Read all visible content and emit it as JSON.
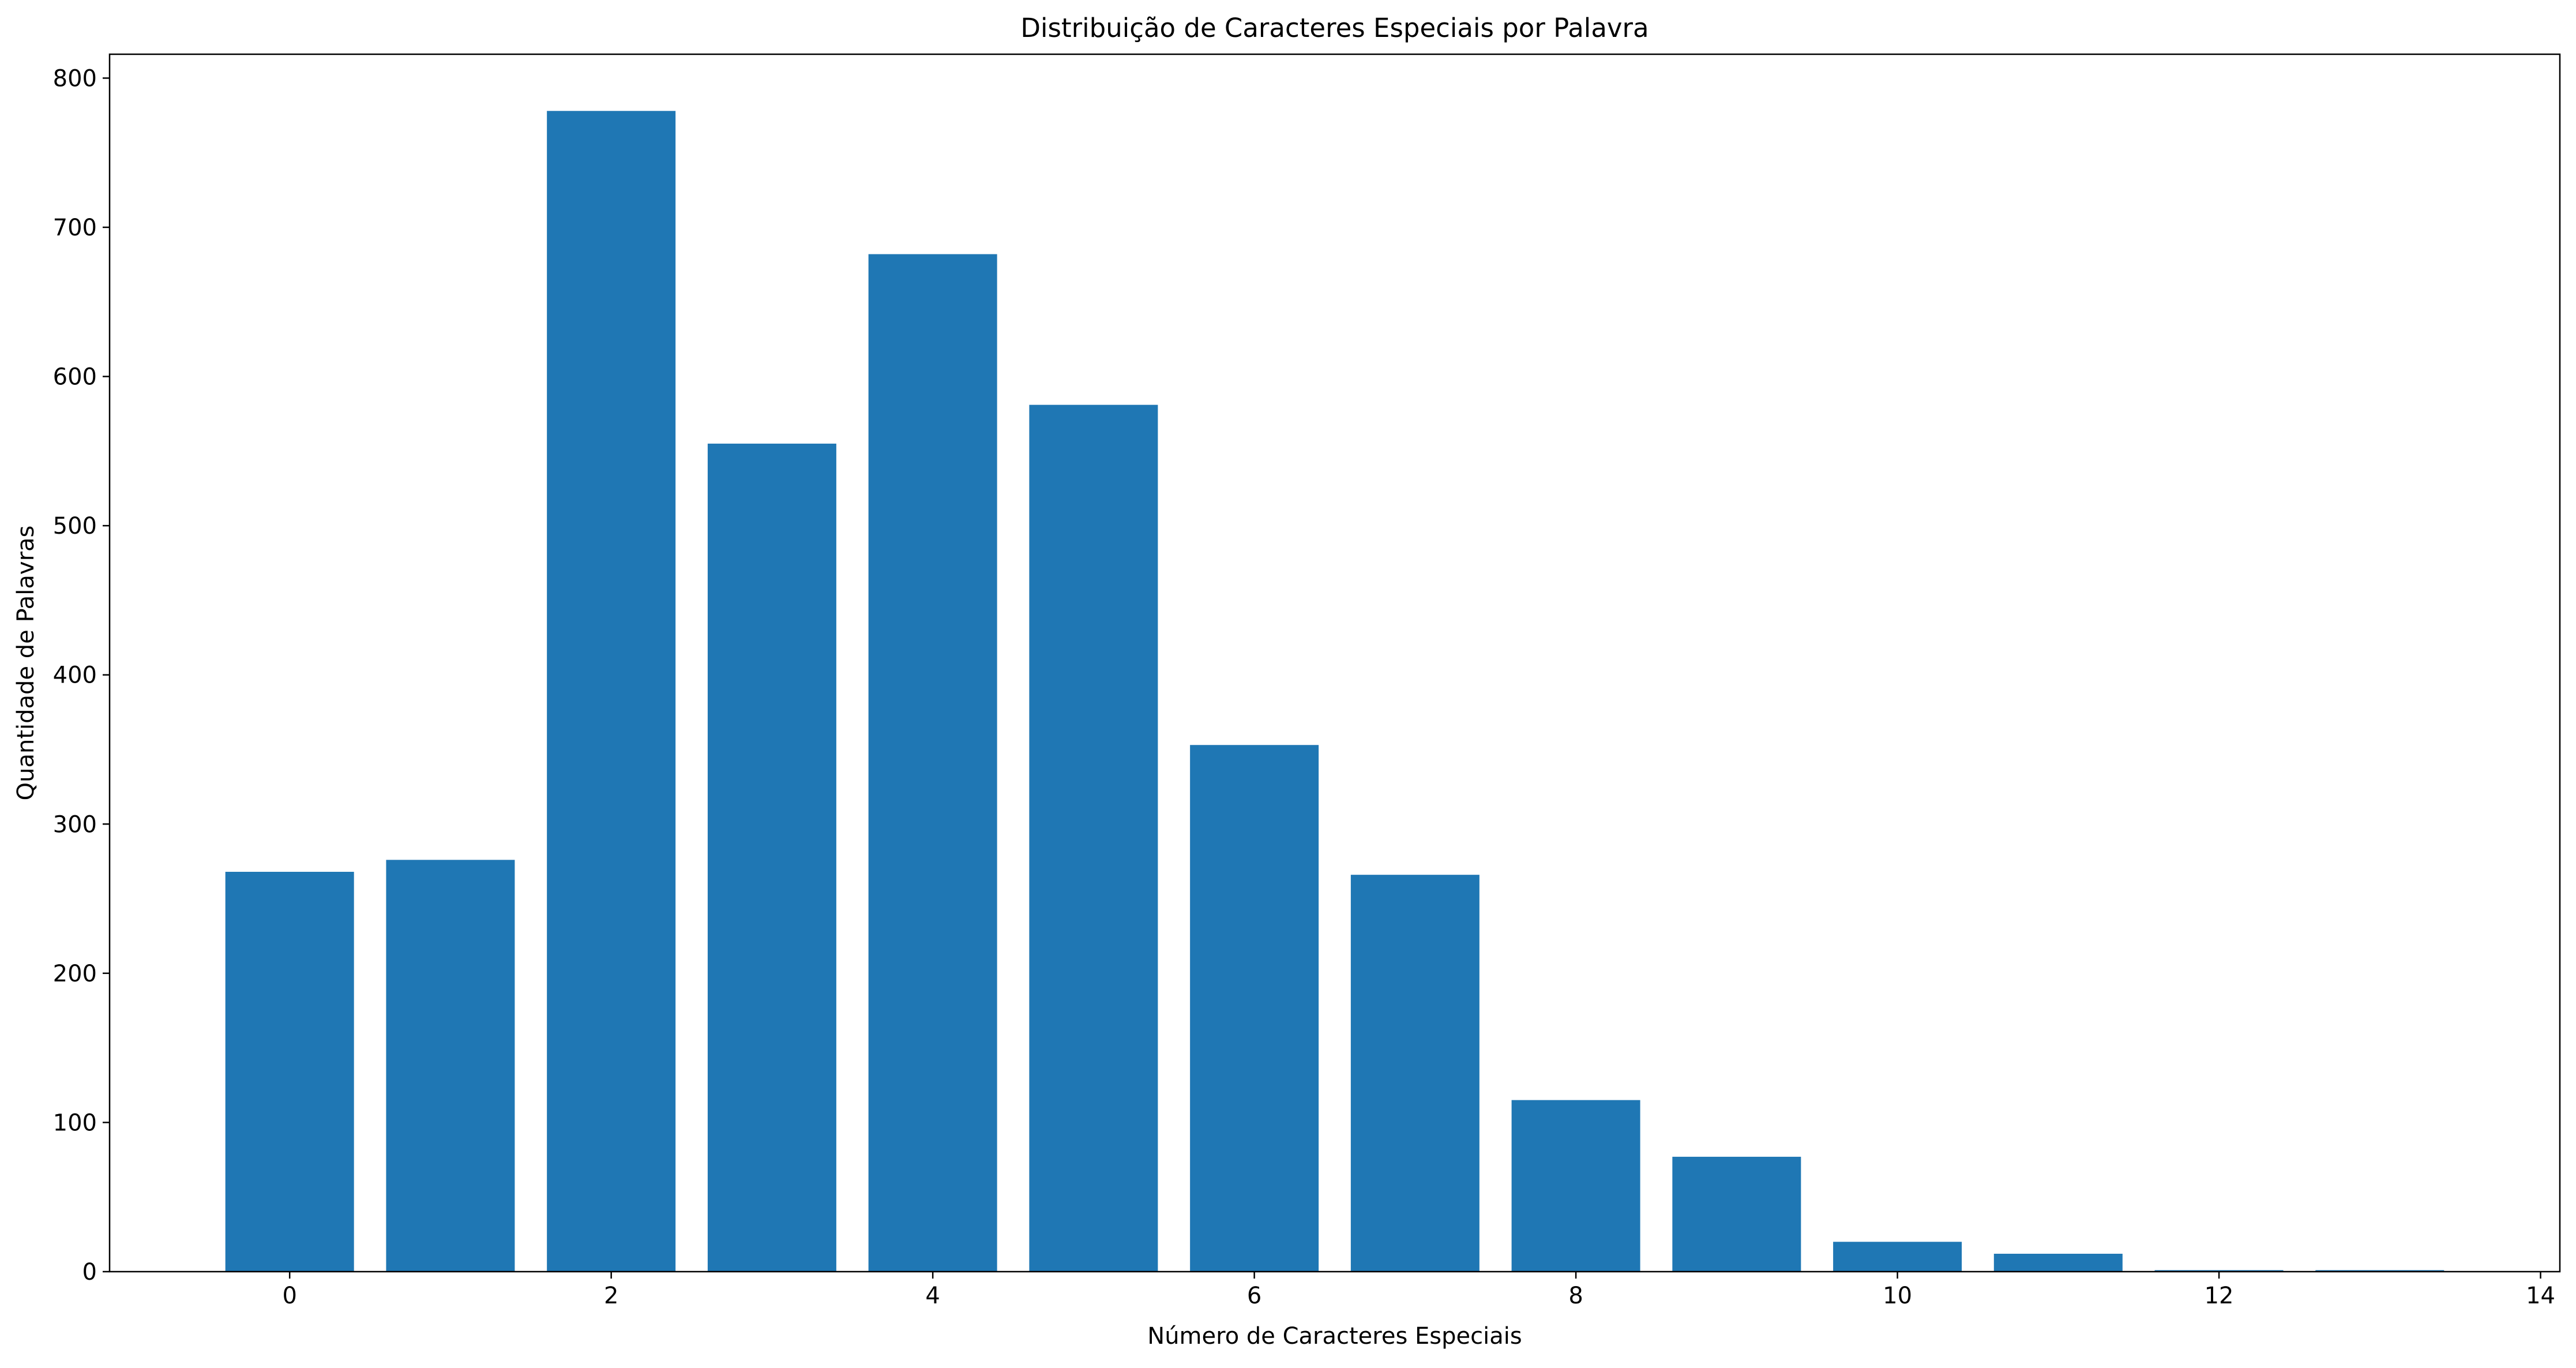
{
  "chart_data": {
    "type": "bar",
    "title": "Distribuição de Caracteres Especiais por Palavra",
    "xlabel": "Número de Caracteres Especiais",
    "ylabel": "Quantidade de Palavras",
    "x": [
      0,
      1,
      2,
      3,
      4,
      5,
      6,
      7,
      8,
      9,
      10,
      11,
      12,
      13
    ],
    "values": [
      268,
      276,
      778,
      555,
      682,
      581,
      353,
      266,
      115,
      77,
      20,
      12,
      1,
      1
    ],
    "xlim": [
      -1.12,
      14.12
    ],
    "ylim": [
      0,
      816
    ],
    "xticks": [
      0,
      2,
      4,
      6,
      8,
      10,
      12,
      14
    ],
    "yticks": [
      0,
      100,
      200,
      300,
      400,
      500,
      600,
      700,
      800
    ],
    "bar_color": "#1f77b4",
    "grid": false,
    "legend": "none"
  }
}
